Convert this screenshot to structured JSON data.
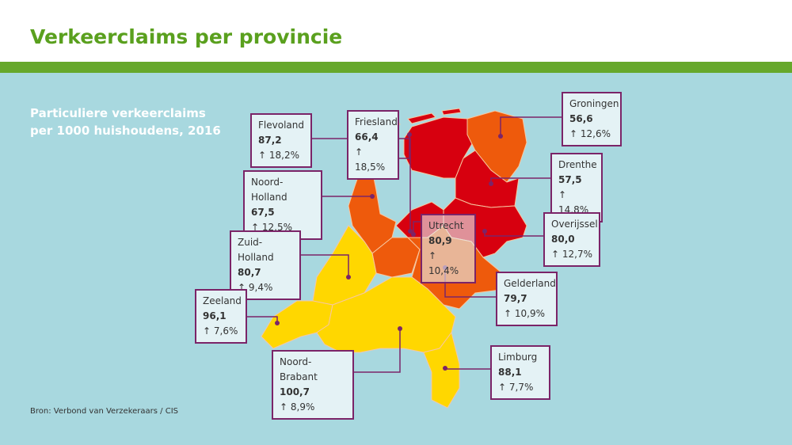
{
  "header": {
    "title": "Verkeerclaims per provincie"
  },
  "subtitle": "Particuliere verkeerclaims per 1000 huishoudens, 2016",
  "source": "Bron: Verbond van Verzekeraars / CIS",
  "provinces": [
    {
      "name": "Flevoland",
      "value": "87,2",
      "change": "↑ 18,2%"
    },
    {
      "name": "Friesland",
      "value": "66,4",
      "change": "↑ 18,5%"
    },
    {
      "name": "Groningen",
      "value": "56,6",
      "change": "↑ 12,6%"
    },
    {
      "name": "Noord-Holland",
      "value": "67,5",
      "change": "↑ 12,5%"
    },
    {
      "name": "Drenthe",
      "value": "57,5",
      "change": "↑ 14,8%"
    },
    {
      "name": "Utrecht",
      "value": "80,9",
      "change": "↑ 10,4%"
    },
    {
      "name": "Overijssel",
      "value": "80,0",
      "change": "↑ 12,7%"
    },
    {
      "name": "Zuid-Holland",
      "value": "80,7",
      "change": "↑ 9,4%"
    },
    {
      "name": "Gelderland",
      "value": "79,7",
      "change": "↑ 10,9%"
    },
    {
      "name": "Zeeland",
      "value": "96,1",
      "change": "↑ 7,6%"
    },
    {
      "name": "Noord-Brabant",
      "value": "100,7",
      "change": "↑ 8,9%"
    },
    {
      "name": "Limburg",
      "value": "88,1",
      "change": "↑ 7,7%"
    }
  ]
}
